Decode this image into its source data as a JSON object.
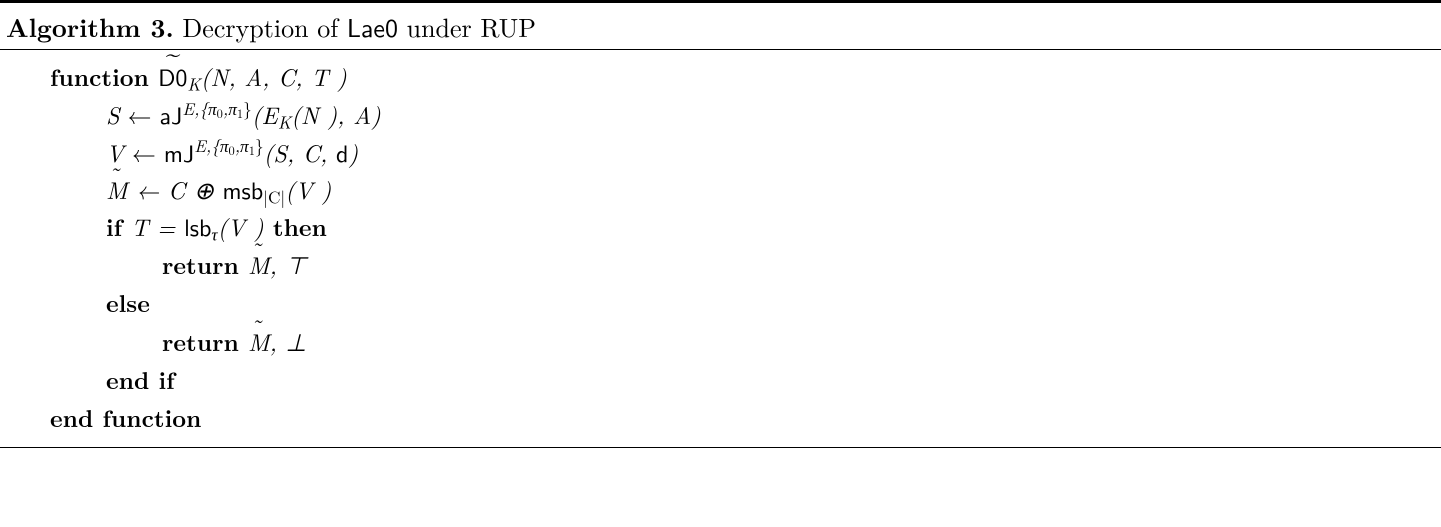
{
  "algo": {
    "number": "Algorithm 3.",
    "title_plain": " Decryption of ",
    "title_sf": "Lae0",
    "title_tail": " under RUP"
  },
  "lines": {
    "func_kw": "function ",
    "func_name_sf": "D0",
    "func_sub": "K",
    "func_args": "(N, A, C, T )",
    "s_lhs": "S",
    "arrow": " ← ",
    "aJ": "aJ",
    "mJ": "mJ",
    "sup_Epi": "E,{π",
    "sup_pi0": "0",
    "sup_comma": ",π",
    "sup_pi1": "1",
    "sup_close": "}",
    "aJ_args_pre": "(E",
    "aJ_args_subK": "K",
    "aJ_args_post": "(N ), A)",
    "v_lhs": "V",
    "mJ_args": "(S, C, ",
    "mJ_arg_d": "d",
    "mJ_args_close": ")",
    "mtilde": "M",
    "m_line_mid": " ← C ⊕ ",
    "msb": "msb",
    "msb_sub": "|C|",
    "msb_arg": "(V )",
    "if_kw": "if ",
    "T_eq": "T = ",
    "lsb": "lsb",
    "lsb_sub": "τ",
    "lsb_arg": "(V )",
    "then_kw": " then",
    "return_kw": "return ",
    "top": ", ⊤",
    "else_kw": "else",
    "bot": ", ⊥",
    "endif_kw": "end if",
    "endfunc_kw": "end function"
  },
  "style": {
    "text_color": "#000000",
    "background": "#ffffff"
  }
}
